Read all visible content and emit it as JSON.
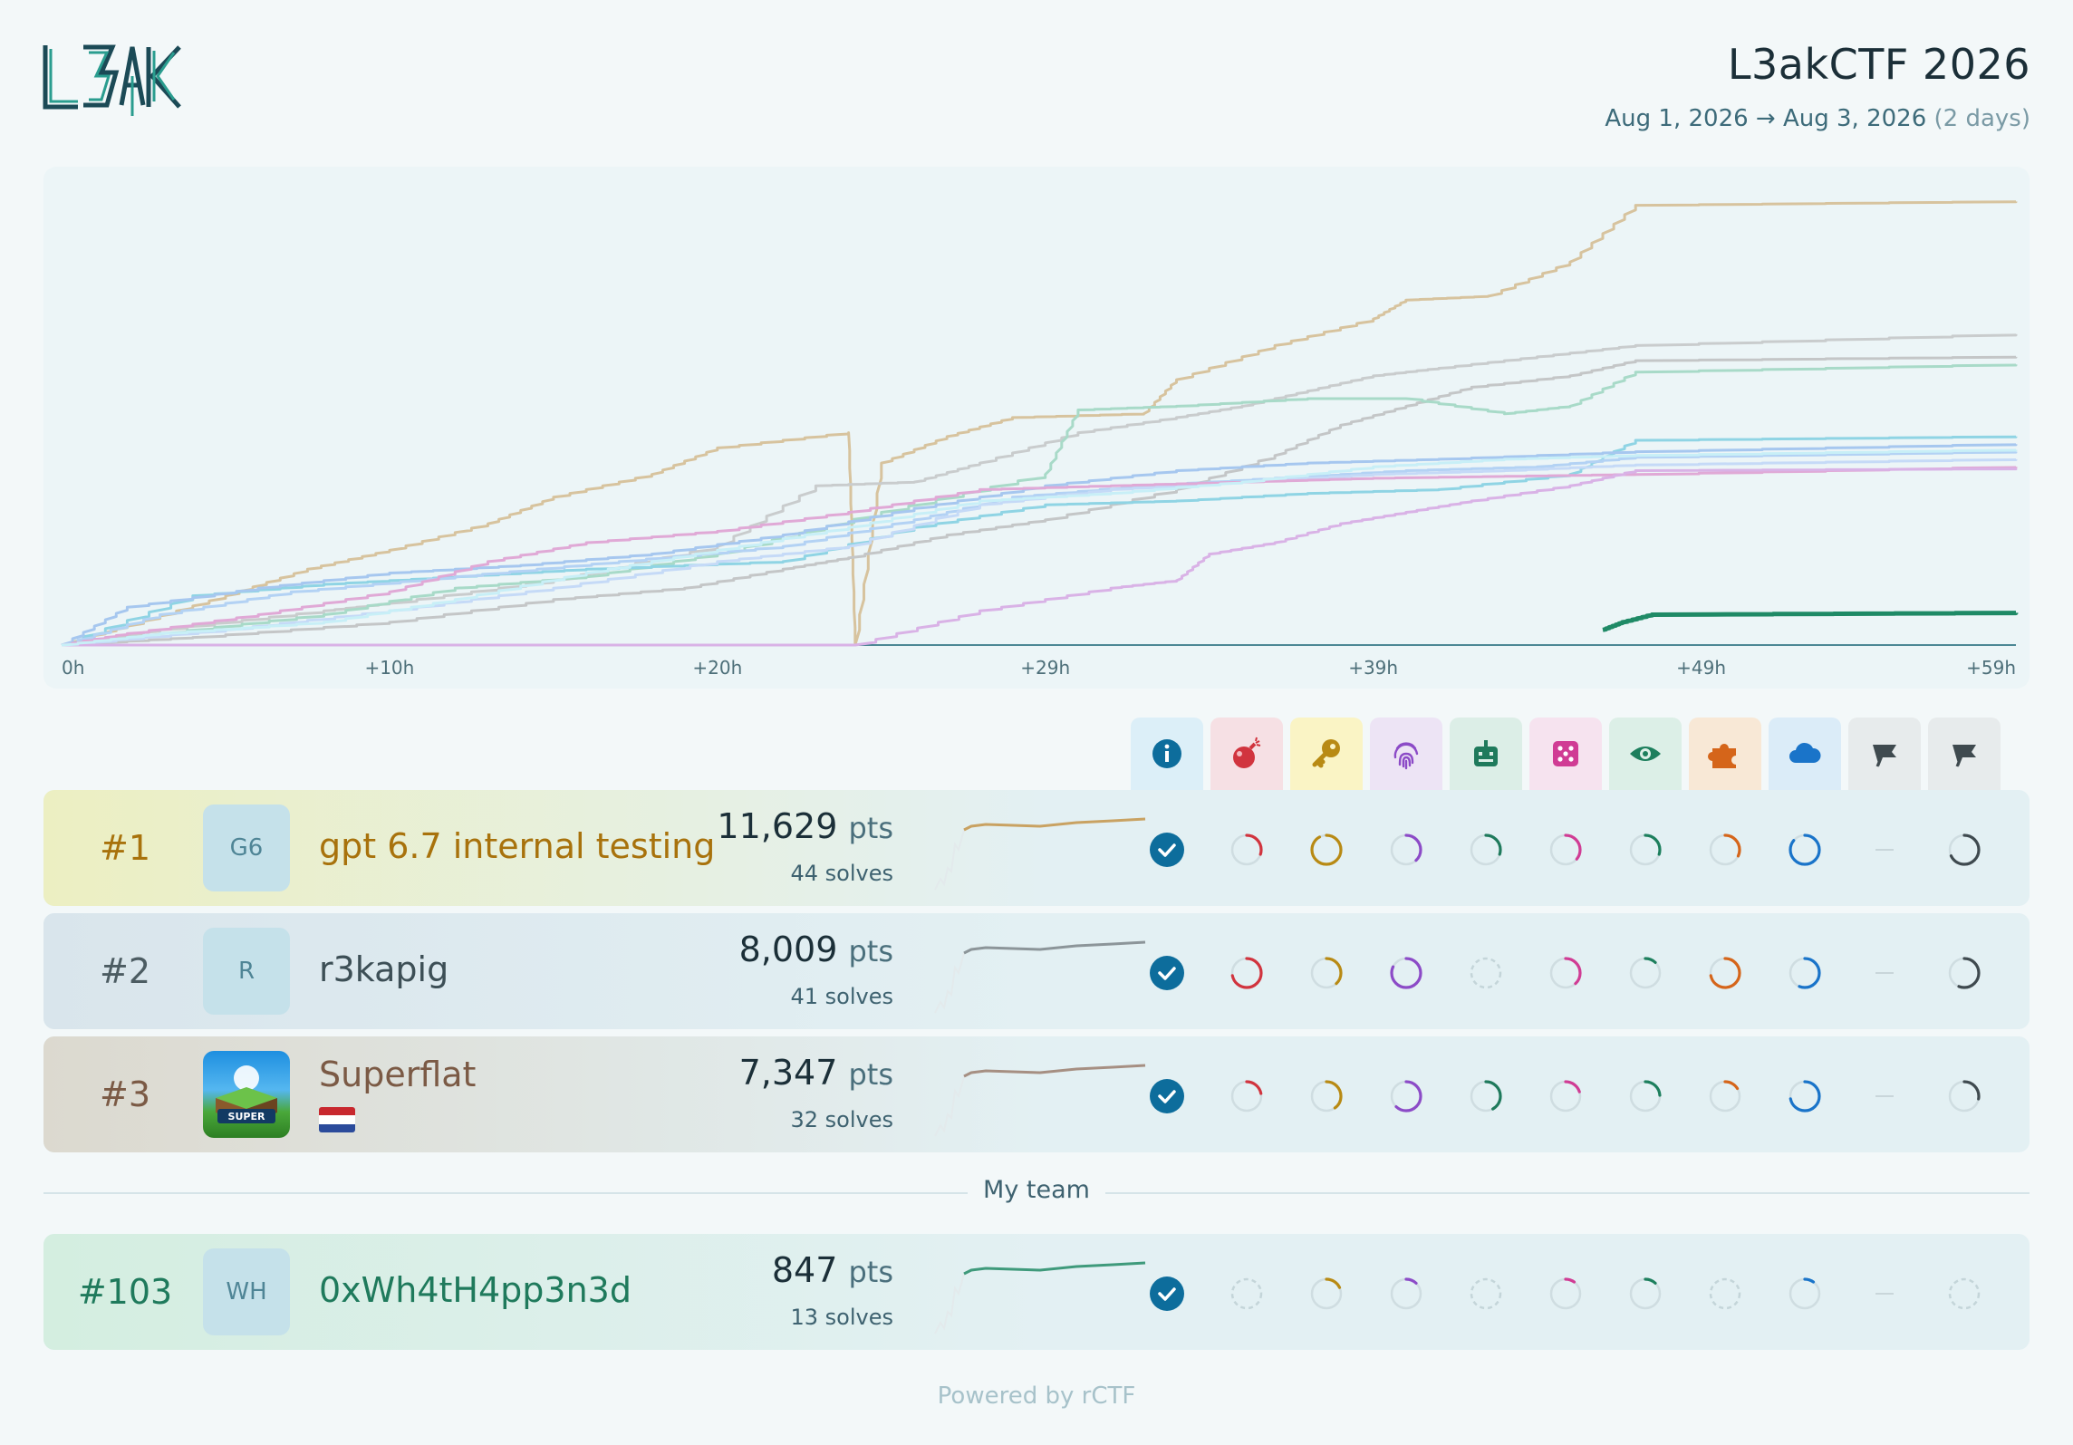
{
  "header": {
    "logo_alt": "L3AK",
    "event_title": "L3akCTF 2026",
    "date_start": "Aug 1, 2026",
    "date_arrow": "→",
    "date_end": "Aug 3, 2026",
    "duration": "(2 days)"
  },
  "chart_data": {
    "type": "line",
    "x_ticks": [
      "0h",
      "+10h",
      "+20h",
      "+29h",
      "+39h",
      "+49h",
      "+59h"
    ],
    "x_range_hours": [
      0,
      59.6
    ],
    "y_range": [
      0,
      11900
    ],
    "series": [
      {
        "color": "#d7c39e",
        "points": [
          [
            0,
            0
          ],
          [
            2,
            500
          ],
          [
            5,
            1300
          ],
          [
            7.5,
            2000
          ],
          [
            10,
            2500
          ],
          [
            13,
            3200
          ],
          [
            15,
            3900
          ],
          [
            18,
            4500
          ],
          [
            20,
            5200
          ],
          [
            24,
            5600
          ],
          [
            24.2,
            0
          ],
          [
            25,
            4800
          ],
          [
            27,
            5500
          ],
          [
            29,
            6000
          ],
          [
            33,
            6100
          ],
          [
            34,
            7000
          ],
          [
            37,
            7900
          ],
          [
            40,
            8600
          ],
          [
            41,
            9100
          ],
          [
            43.5,
            9200
          ],
          [
            46,
            10100
          ],
          [
            48,
            11600
          ],
          [
            59.6,
            11700
          ]
        ],
        "width": 3
      },
      {
        "color": "#c9cccd",
        "points": [
          [
            0,
            0
          ],
          [
            3,
            400
          ],
          [
            8,
            900
          ],
          [
            10,
            1100
          ],
          [
            15,
            1700
          ],
          [
            20,
            2600
          ],
          [
            23,
            4200
          ],
          [
            26,
            4300
          ],
          [
            28,
            4800
          ],
          [
            31,
            5600
          ],
          [
            34,
            6000
          ],
          [
            36,
            6300
          ],
          [
            38,
            6700
          ],
          [
            40,
            7100
          ],
          [
            42,
            7300
          ],
          [
            45,
            7600
          ],
          [
            48,
            7900
          ],
          [
            59.6,
            8200
          ]
        ],
        "width": 3
      },
      {
        "color": "#c4c6c7",
        "points": [
          [
            0,
            0
          ],
          [
            4,
            200
          ],
          [
            10,
            600
          ],
          [
            15,
            1200
          ],
          [
            19,
            1500
          ],
          [
            22,
            2000
          ],
          [
            24,
            2300
          ],
          [
            27,
            2900
          ],
          [
            30,
            3300
          ],
          [
            34,
            4100
          ],
          [
            37,
            5000
          ],
          [
            39,
            5800
          ],
          [
            41,
            6300
          ],
          [
            43,
            6800
          ],
          [
            46,
            7100
          ],
          [
            48,
            7500
          ],
          [
            59.6,
            7600
          ]
        ],
        "width": 3
      },
      {
        "color": "#a8dac8",
        "points": [
          [
            0,
            0
          ],
          [
            3,
            300
          ],
          [
            8,
            800
          ],
          [
            12,
            1500
          ],
          [
            16,
            1800
          ],
          [
            20,
            2400
          ],
          [
            25,
            3500
          ],
          [
            30,
            4500
          ],
          [
            31,
            6200
          ],
          [
            34,
            6300
          ],
          [
            38,
            6500
          ],
          [
            41,
            6500
          ],
          [
            44,
            6100
          ],
          [
            46,
            6300
          ],
          [
            48,
            7200
          ],
          [
            59.6,
            7400
          ]
        ],
        "width": 3
      },
      {
        "color": "#8fd4e4",
        "points": [
          [
            0,
            0
          ],
          [
            4,
            1300
          ],
          [
            8,
            1600
          ],
          [
            12,
            1800
          ],
          [
            16,
            2000
          ],
          [
            22,
            2200
          ],
          [
            26,
            3100
          ],
          [
            30,
            3700
          ],
          [
            34,
            3800
          ],
          [
            38,
            4000
          ],
          [
            42,
            4100
          ],
          [
            46,
            4500
          ],
          [
            48,
            5400
          ],
          [
            59.6,
            5500
          ]
        ],
        "width": 3
      },
      {
        "color": "#a6c7ef",
        "points": [
          [
            0,
            0
          ],
          [
            2,
            1000
          ],
          [
            6,
            1500
          ],
          [
            10,
            1900
          ],
          [
            14,
            2100
          ],
          [
            18,
            2400
          ],
          [
            22,
            2900
          ],
          [
            26,
            3600
          ],
          [
            30,
            4200
          ],
          [
            34,
            4600
          ],
          [
            38,
            4800
          ],
          [
            42,
            4900
          ],
          [
            48,
            5100
          ],
          [
            59.6,
            5300
          ]
        ],
        "width": 3
      },
      {
        "color": "#b3d2f4",
        "points": [
          [
            0,
            0
          ],
          [
            3,
            800
          ],
          [
            7,
            1400
          ],
          [
            12,
            1800
          ],
          [
            17,
            2200
          ],
          [
            22,
            2600
          ],
          [
            26,
            3300
          ],
          [
            29,
            3900
          ],
          [
            33,
            4200
          ],
          [
            37,
            4400
          ],
          [
            41,
            4600
          ],
          [
            45,
            4700
          ],
          [
            48,
            4950
          ],
          [
            59.6,
            5100
          ]
        ],
        "width": 3
      },
      {
        "color": "#c5daf7",
        "points": [
          [
            0,
            0
          ],
          [
            5,
            400
          ],
          [
            10,
            900
          ],
          [
            15,
            1500
          ],
          [
            20,
            2200
          ],
          [
            24,
            2600
          ],
          [
            28,
            3700
          ],
          [
            32,
            4100
          ],
          [
            36,
            4300
          ],
          [
            40,
            4500
          ],
          [
            44,
            4600
          ],
          [
            48,
            4750
          ],
          [
            59.6,
            4900
          ]
        ],
        "width": 3
      },
      {
        "color": "#e0a9d6",
        "points": [
          [
            0,
            0
          ],
          [
            2,
            300
          ],
          [
            6,
            800
          ],
          [
            10,
            1400
          ],
          [
            13,
            2200
          ],
          [
            16,
            2700
          ],
          [
            20,
            3000
          ],
          [
            24,
            3500
          ],
          [
            28,
            4100
          ],
          [
            32,
            4200
          ],
          [
            36,
            4300
          ],
          [
            40,
            4400
          ],
          [
            44,
            4450
          ],
          [
            48,
            4500
          ],
          [
            59.6,
            4700
          ]
        ],
        "width": 3
      },
      {
        "color": "#d9b2e6",
        "points": [
          [
            0,
            0
          ],
          [
            24.2,
            0
          ],
          [
            28,
            900
          ],
          [
            32,
            1500
          ],
          [
            34,
            1700
          ],
          [
            35,
            2400
          ],
          [
            37,
            2700
          ],
          [
            39,
            3200
          ],
          [
            41,
            3500
          ],
          [
            43,
            3800
          ],
          [
            46,
            4200
          ],
          [
            48,
            4600
          ],
          [
            59.6,
            4650
          ]
        ],
        "width": 3
      },
      {
        "color": "#c8eff7",
        "points": [
          [
            0,
            0
          ],
          [
            3,
            300
          ],
          [
            8,
            600
          ],
          [
            12,
            1200
          ],
          [
            16,
            1900
          ],
          [
            20,
            2500
          ],
          [
            24,
            3100
          ],
          [
            28,
            3800
          ],
          [
            32,
            4000
          ],
          [
            36,
            4300
          ],
          [
            40,
            4700
          ],
          [
            44,
            4900
          ],
          [
            48,
            5000
          ],
          [
            59.6,
            5150
          ]
        ],
        "width": 3
      },
      {
        "color": "#1f8a66",
        "points": [
          [
            47,
            400
          ],
          [
            47.6,
            600
          ],
          [
            48.5,
            800
          ],
          [
            59.6,
            850
          ]
        ],
        "width": 5
      }
    ]
  },
  "categories": [
    {
      "icon": "info-icon",
      "bg": "#dceff8",
      "color": "#0d6d9c"
    },
    {
      "icon": "bomb-icon",
      "bg": "#f6e0e4",
      "color": "#d1343e"
    },
    {
      "icon": "key-icon",
      "bg": "#faf4c5",
      "color": "#b88a14"
    },
    {
      "icon": "fingerprint-icon",
      "bg": "#ede4f5",
      "color": "#8c4bc7"
    },
    {
      "icon": "robot-icon",
      "bg": "#dceee7",
      "color": "#1f7a5c"
    },
    {
      "icon": "dice-icon",
      "bg": "#f6e3ef",
      "color": "#d03c94"
    },
    {
      "icon": "eye-icon",
      "bg": "#dcefe7",
      "color": "#1d7f5d"
    },
    {
      "icon": "puzzle-icon",
      "bg": "#f8e8d6",
      "color": "#d5651a"
    },
    {
      "icon": "cloud-icon",
      "bg": "#dbecf8",
      "color": "#1a74c9"
    },
    {
      "icon": "flag-icon",
      "bg": "#e7ebec",
      "color": "#3f4a4f"
    },
    {
      "icon": "flag-icon",
      "bg": "#e7ebec",
      "color": "#3f4a4f"
    }
  ],
  "teams": [
    {
      "rank": "#1",
      "avatar_text": "G6",
      "name": "gpt 6.7 internal testing",
      "points": "11,629",
      "points_unit": "pts",
      "solves": "44 solves",
      "name_color": "#a8720c",
      "rank_color": "#a8720c",
      "grad": "#ecefc2",
      "spark_color": "#c9a262",
      "progress": [
        1,
        0.3,
        0.92,
        0.38,
        0.3,
        0.36,
        0.3,
        0.32,
        0.86,
        null,
        0.68
      ]
    },
    {
      "rank": "#2",
      "avatar_text": "R",
      "name": "r3kapig",
      "points": "8,009",
      "points_unit": "pts",
      "solves": "41 solves",
      "name_color": "#3d4f56",
      "rank_color": "#4c5c62",
      "grad": "#d9e5ec",
      "spark_color": "#8c9599",
      "progress": [
        1,
        0.72,
        0.38,
        0.82,
        0,
        0.38,
        0.12,
        0.72,
        0.56,
        null,
        0.56
      ]
    },
    {
      "rank": "#3",
      "avatar_text": "",
      "name": "Superflat",
      "points": "7,347",
      "points_unit": "pts",
      "solves": "32 solves",
      "name_color": "#7b5a45",
      "rank_color": "#7b5a45",
      "grad": "#dcd9cf",
      "spark_color": "#a68f82",
      "progress": [
        1,
        0.22,
        0.4,
        0.62,
        0.42,
        0.2,
        0.24,
        0.16,
        0.72,
        null,
        0.28
      ]
    }
  ],
  "divider_label": "My team",
  "my_team": {
    "rank": "#103",
    "avatar_text": "WH",
    "name": "0xWh4tH4pp3n3d",
    "points": "847",
    "points_unit": "pts",
    "solves": "13 solves",
    "name_color": "#1f7a5c",
    "rank_color": "#1f7a5c",
    "grad": "#d4eee0",
    "spark_color": "#3f9a7b",
    "progress": [
      1,
      0,
      0.18,
      0.12,
      0,
      0.1,
      0.12,
      0,
      0.1,
      null,
      0
    ]
  },
  "footer": "Powered by rCTF"
}
